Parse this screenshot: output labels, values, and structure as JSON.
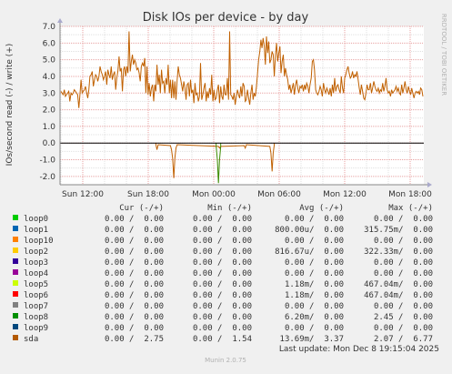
{
  "chart_data": {
    "type": "line",
    "title": "Disk IOs per device - by day",
    "ylabel": "IOs/second read (-) / write (+)",
    "watermark": "RRDTOOL / TOBI OETIKER",
    "ylim": [
      -2.5,
      7.0
    ],
    "yticks": [
      "7.0",
      "6.0",
      "5.0",
      "4.0",
      "3.0",
      "2.0",
      "1.0",
      "0.0",
      "-1.0",
      "-2.0"
    ],
    "xticks": [
      "Sun 12:00",
      "Sun 18:00",
      "Mon 00:00",
      "Mon 06:00",
      "Mon 12:00",
      "Mon 18:00"
    ],
    "grid": true,
    "colors": {
      "background": "#f0f0f0",
      "plot_bg": "#ffffff",
      "major_grid": "#e8a0a0",
      "minor_grid": "#e0e0e0",
      "axis": "#000000",
      "title": "#333333",
      "legend_text": "#333333"
    },
    "series": [
      {
        "name": "sda",
        "color": "#c06000",
        "write_values": [
          3.1,
          3.0,
          2.9,
          3.2,
          2.8,
          2.9,
          3.0,
          3.1,
          2.5,
          3.0,
          2.9,
          3.0,
          3.2,
          3.1,
          3.0,
          2.9,
          2.1,
          2.9,
          3.8,
          3.0,
          3.1,
          3.2,
          3.4,
          3.0,
          2.7,
          3.2,
          4.0,
          4.1,
          4.3,
          3.4,
          3.8,
          4.1,
          4.0,
          3.7,
          4.0,
          4.6,
          4.3,
          4.1,
          3.8,
          4.0,
          4.3,
          3.5,
          4.4,
          4.1,
          3.9,
          4.6,
          3.8,
          4.1,
          4.3,
          3.2,
          3.9,
          4.3,
          5.2,
          4.3,
          4.5,
          3.1,
          4.4,
          4.6,
          4.0,
          4.6,
          4.2,
          6.7,
          4.3,
          4.9,
          5.3,
          4.7,
          5.0,
          4.8,
          4.4,
          4.5,
          4.2,
          3.7,
          4.6,
          4.8,
          4.6,
          5.1,
          3.0,
          4.6,
          2.9,
          3.6,
          2.8,
          3.3,
          3.5,
          2.5,
          3.5,
          3.1,
          4.7,
          3.5,
          4.1,
          3.0,
          4.4,
          3.6,
          3.7,
          3.0,
          3.9,
          3.5,
          4.7,
          3.0,
          3.8,
          2.7,
          3.8,
          2.7,
          3.7,
          2.6,
          3.8,
          4.6,
          4.1,
          3.9,
          3.5,
          3.1,
          3.7,
          3.3,
          2.6,
          3.5,
          3.6,
          2.8,
          3.8,
          3.0,
          3.2,
          2.4,
          3.6,
          2.9,
          3.0,
          2.5,
          2.8,
          4.8,
          2.6,
          2.9,
          3.3,
          3.6,
          2.5,
          3.1,
          2.7,
          3.3,
          2.9,
          4.1,
          2.5,
          3.2,
          2.6,
          2.7,
          3.2,
          3.5,
          2.4,
          3.4,
          2.8,
          2.6,
          3.5,
          2.9,
          2.9,
          3.9,
          2.6,
          6.7,
          2.9,
          2.8,
          2.6,
          3.0,
          2.3,
          2.8,
          3.2,
          2.9,
          2.7,
          3.4,
          2.8,
          3.6,
          3.4,
          2.5,
          2.6,
          3.2,
          2.7,
          2.3,
          3.0,
          3.5,
          2.6,
          3.0,
          2.8,
          3.4,
          4.2,
          5.0,
          5.5,
          6.2,
          5.7,
          6.3,
          5.8,
          4.7,
          6.4,
          5.4,
          6.1,
          4.8,
          5.0,
          5.5,
          5.3,
          4.0,
          5.3,
          6.0,
          4.9,
          5.4,
          5.8,
          4.2,
          4.9,
          5.3,
          4.0,
          4.5,
          4.1,
          3.8,
          3.2,
          3.5,
          3.0,
          3.3,
          3.6,
          2.9,
          3.5,
          3.8,
          3.3,
          3.0,
          3.4,
          3.3,
          3.5,
          3.1,
          3.5,
          3.2,
          3.6,
          3.4,
          3.0,
          3.5,
          3.9,
          4.9,
          5.0,
          4.4,
          3.2,
          3.0,
          2.9,
          3.1,
          3.4,
          3.2,
          2.8,
          3.6,
          3.2,
          3.0,
          3.3,
          3.1,
          2.9,
          3.3,
          2.8,
          3.5,
          3.0,
          3.9,
          3.1,
          3.4,
          3.5,
          3.2,
          3.0,
          4.0,
          3.3,
          3.0,
          3.9,
          4.1,
          4.4,
          4.6,
          4.2,
          3.9,
          4.0,
          4.3,
          3.9,
          4.1,
          4.0,
          4.3,
          3.8,
          3.3,
          2.9,
          3.5,
          3.1,
          2.7,
          2.6,
          3.0,
          3.5,
          3.2,
          3.2,
          3.6,
          3.0,
          3.3,
          3.7,
          3.4,
          3.2,
          3.1,
          3.3,
          3.0,
          3.2,
          3.1,
          3.6,
          3.1,
          3.4,
          3.9,
          3.2,
          3.0,
          3.1,
          2.8,
          3.2,
          3.0,
          3.1,
          3.2,
          3.4,
          3.1,
          3.3,
          3.0,
          2.9,
          3.5,
          3.0,
          3.3,
          3.7,
          3.2,
          3.0,
          3.4,
          3.1,
          2.9,
          3.3,
          3.0,
          2.7,
          3.0,
          3.1,
          3.0,
          3.1,
          2.9,
          3.3,
          3.2,
          2.8
        ]
      }
    ],
    "read_spikes": [
      {
        "name": "sda",
        "color": "#c06000",
        "points": [
          [
            85,
            -0.1
          ],
          [
            86,
            -0.4
          ],
          [
            87,
            -0.1
          ],
          [
            98,
            -0.15
          ],
          [
            99,
            -0.4
          ],
          [
            100,
            -0.9
          ],
          [
            101,
            -2.1
          ],
          [
            102,
            -0.9
          ],
          [
            103,
            -0.3
          ],
          [
            104,
            -0.1
          ],
          [
            141,
            -0.2
          ],
          [
            142,
            -0.3
          ],
          [
            143,
            -0.2
          ],
          [
            164,
            -0.15
          ],
          [
            165,
            -0.3
          ],
          [
            166,
            -0.1
          ],
          [
            187,
            -0.2
          ],
          [
            188,
            -0.6
          ],
          [
            189,
            -1.7
          ],
          [
            190,
            -0.6
          ],
          [
            191,
            -0.1
          ]
        ]
      },
      {
        "name": "loop8",
        "color": "#3c8a00",
        "points": [
          [
            139,
            -0.2
          ],
          [
            140,
            -1.0
          ],
          [
            141,
            -2.4
          ],
          [
            142,
            -1.0
          ],
          [
            143,
            -0.2
          ]
        ]
      }
    ],
    "legend_header": {
      "cur": "Cur (-/+)",
      "min": "Min (-/+)",
      "avg": "Avg (-/+)",
      "max": "Max (-/+)"
    },
    "legend": [
      {
        "name": "loop0",
        "color": "#00cc00",
        "cur": "0.00 /  0.00",
        "min": "0.00 /  0.00",
        "avg": "0.00 /  0.00",
        "max": "0.00 /  0.00"
      },
      {
        "name": "loop1",
        "color": "#0066b3",
        "cur": "0.00 /  0.00",
        "min": "0.00 /  0.00",
        "avg": "800.00u/  0.00",
        "max": "315.75m/  0.00"
      },
      {
        "name": "loop10",
        "color": "#ff8000",
        "cur": "0.00 /  0.00",
        "min": "0.00 /  0.00",
        "avg": "0.00 /  0.00",
        "max": "0.00 /  0.00"
      },
      {
        "name": "loop2",
        "color": "#ffcc00",
        "cur": "0.00 /  0.00",
        "min": "0.00 /  0.00",
        "avg": "816.67u/  0.00",
        "max": "322.33m/  0.00"
      },
      {
        "name": "loop3",
        "color": "#330099",
        "cur": "0.00 /  0.00",
        "min": "0.00 /  0.00",
        "avg": "0.00 /  0.00",
        "max": "0.00 /  0.00"
      },
      {
        "name": "loop4",
        "color": "#990099",
        "cur": "0.00 /  0.00",
        "min": "0.00 /  0.00",
        "avg": "0.00 /  0.00",
        "max": "0.00 /  0.00"
      },
      {
        "name": "loop5",
        "color": "#ccff00",
        "cur": "0.00 /  0.00",
        "min": "0.00 /  0.00",
        "avg": "1.18m/  0.00",
        "max": "467.04m/  0.00"
      },
      {
        "name": "loop6",
        "color": "#ff0000",
        "cur": "0.00 /  0.00",
        "min": "0.00 /  0.00",
        "avg": "1.18m/  0.00",
        "max": "467.04m/  0.00"
      },
      {
        "name": "loop7",
        "color": "#808080",
        "cur": "0.00 /  0.00",
        "min": "0.00 /  0.00",
        "avg": "0.00 /  0.00",
        "max": "0.00 /  0.00"
      },
      {
        "name": "loop8",
        "color": "#008f00",
        "cur": "0.00 /  0.00",
        "min": "0.00 /  0.00",
        "avg": "6.20m/  0.00",
        "max": "2.45 /  0.00"
      },
      {
        "name": "loop9",
        "color": "#00487d",
        "cur": "0.00 /  0.00",
        "min": "0.00 /  0.00",
        "avg": "0.00 /  0.00",
        "max": "0.00 /  0.00"
      },
      {
        "name": "sda",
        "color": "#b35a00",
        "cur": "0.00 /  2.75",
        "min": "0.00 /  1.54",
        "avg": "13.69m/  3.37",
        "max": "2.07 /  6.77"
      }
    ],
    "last_update": "Last update: Mon Dec  8 19:15:04 2025",
    "footer": "Munin 2.0.75"
  }
}
